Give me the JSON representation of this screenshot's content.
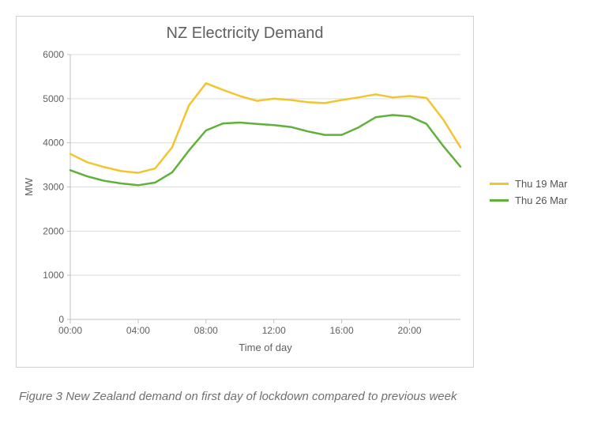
{
  "chart": {
    "type": "line",
    "title": "NZ Electricity Demand",
    "title_fontsize": 20,
    "title_color": "#606060",
    "xlabel": "Time of day",
    "ylabel": "MW",
    "label_fontsize": 13,
    "label_color": "#606060",
    "background_color": "#ffffff",
    "border_color": "#d0d0d0",
    "gridline_color": "#dcdcdc",
    "axis_line_color": "#bfbfbf",
    "tick_fontsize": 12,
    "tick_color": "#606060",
    "ylim": [
      0,
      6000
    ],
    "ytick_step": 1000,
    "x_values_hours": [
      0,
      1,
      2,
      3,
      4,
      5,
      6,
      7,
      8,
      9,
      10,
      11,
      12,
      13,
      14,
      15,
      16,
      17,
      18,
      19,
      20,
      21,
      22,
      23
    ],
    "x_tick_hours": [
      0,
      4,
      8,
      12,
      16,
      20
    ],
    "x_tick_labels": [
      "00:00",
      "04:00",
      "08:00",
      "12:00",
      "16:00",
      "20:00"
    ],
    "line_width": 2.5,
    "series": [
      {
        "name": "Thu 19 Mar",
        "color": "#f2c530",
        "y": [
          3750,
          3560,
          3450,
          3360,
          3320,
          3420,
          3900,
          4850,
          5350,
          5200,
          5060,
          4950,
          5000,
          4970,
          4920,
          4900,
          4970,
          5030,
          5100,
          5030,
          5060,
          5020,
          4520,
          3900
        ]
      },
      {
        "name": "Thu 26 Mar",
        "color": "#5fb13a",
        "y": [
          3380,
          3240,
          3140,
          3080,
          3040,
          3100,
          3330,
          3830,
          4280,
          4440,
          4460,
          4430,
          4400,
          4360,
          4260,
          4180,
          4180,
          4350,
          4580,
          4630,
          4600,
          4430,
          3920,
          3460
        ]
      }
    ],
    "legend_position": "right"
  },
  "caption": "Figure 3 New Zealand demand on first day of lockdown compared to previous week"
}
